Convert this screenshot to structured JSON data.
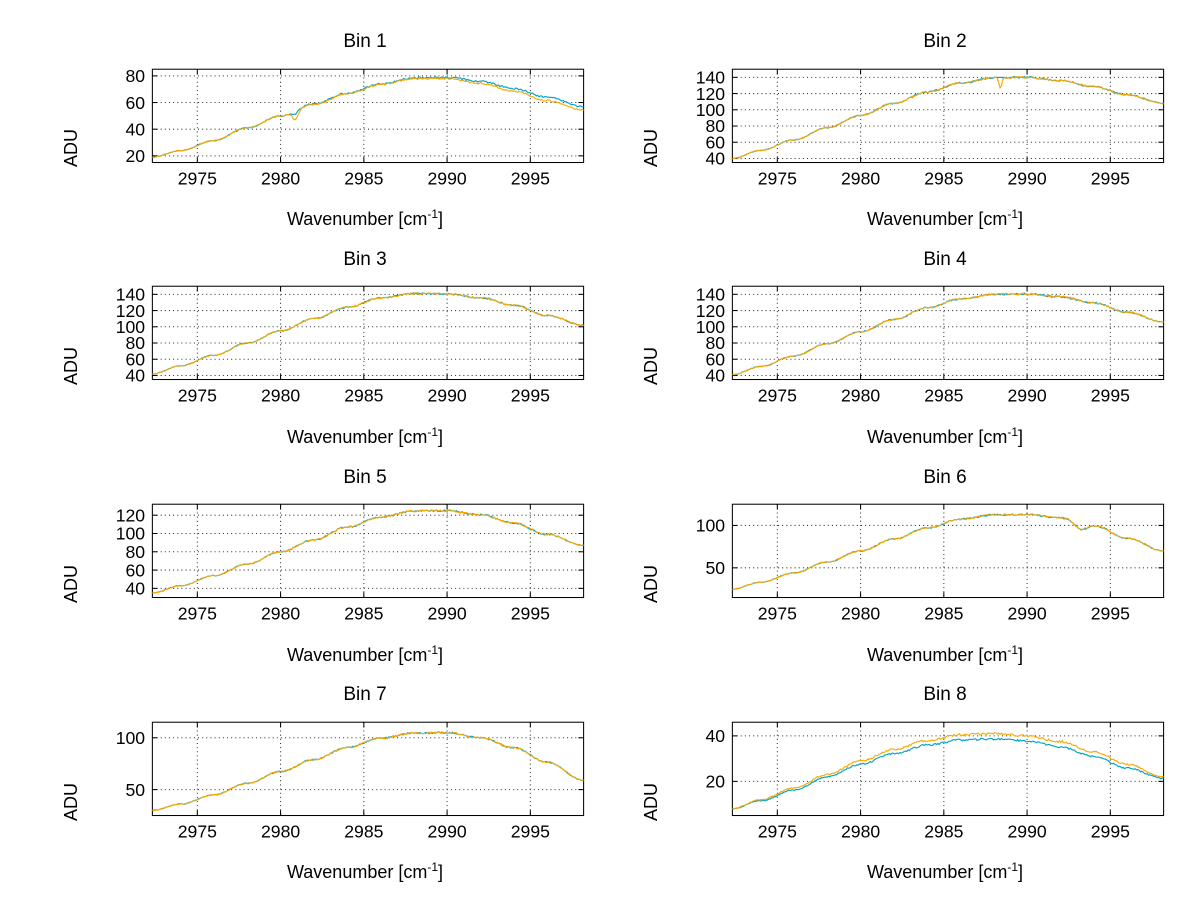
{
  "figure": {
    "background": "#ffffff"
  },
  "colors": {
    "series1": "#00a3c8",
    "series2": "#f9a800",
    "grid": "#333333",
    "axis": "#000000",
    "text": "#000000"
  },
  "labels": {
    "ylabel": "ADU",
    "xlabel_pre": "Wavenumber [cm",
    "xlabel_sup": "-1",
    "xlabel_post": "]"
  },
  "chart_data": [
    {
      "type": "line",
      "title": "Bin 1",
      "xlabel": "Wavenumber [cm^-1]",
      "ylabel": "ADU",
      "xlim": [
        2972.3,
        2998.2
      ],
      "xticks": [
        2975,
        2980,
        2985,
        2990,
        2995
      ],
      "ylim": [
        15,
        85
      ],
      "yticks": [
        20,
        40,
        60,
        80
      ],
      "noise": 0.7,
      "x": [
        2972.3,
        2974,
        2976,
        2978,
        2980,
        2982,
        2984,
        2986,
        2988,
        2990,
        2992,
        2994,
        2996,
        2998.2
      ],
      "series": [
        {
          "name": "trace-blue",
          "color_key": "series1",
          "y": [
            19,
            24,
            31.5,
            41,
            50,
            59,
            67,
            74,
            78.5,
            79,
            76,
            70.5,
            64,
            57
          ],
          "dips": [
            {
              "x": 2980.9,
              "depth": 2.5,
              "width": 0.22
            }
          ]
        },
        {
          "name": "trace-orange",
          "color_key": "series2",
          "y": [
            19,
            24,
            31.5,
            41,
            50,
            58.5,
            66.5,
            73.5,
            78,
            78,
            74.5,
            68.5,
            61.5,
            54.5
          ],
          "dips": [
            {
              "x": 2980.9,
              "depth": 6.5,
              "width": 0.22
            }
          ]
        }
      ]
    },
    {
      "type": "line",
      "title": "Bin 2",
      "xlabel": "Wavenumber [cm^-1]",
      "ylabel": "ADU",
      "xlim": [
        2972.3,
        2998.2
      ],
      "xticks": [
        2975,
        2980,
        2985,
        2990,
        2995
      ],
      "ylim": [
        35,
        150
      ],
      "yticks": [
        40,
        60,
        80,
        100,
        120,
        140
      ],
      "noise": 1.1,
      "x": [
        2972.3,
        2974,
        2976,
        2978,
        2980,
        2982,
        2984,
        2986,
        2988,
        2990,
        2992,
        2994,
        2996,
        2998.2
      ],
      "series": [
        {
          "name": "trace-blue",
          "color_key": "series1",
          "y": [
            40,
            50,
            63,
            78,
            93,
            108,
            122,
            133,
            139.5,
            140,
            136,
            128.5,
            118.5,
            108
          ],
          "dips": []
        },
        {
          "name": "trace-orange",
          "color_key": "series2",
          "y": [
            40,
            50,
            63,
            78,
            93,
            108,
            122,
            133,
            139.5,
            140,
            136,
            128.5,
            118.5,
            108
          ],
          "dips": [
            {
              "x": 2988.4,
              "depth": 13,
              "width": 0.12
            }
          ]
        }
      ]
    },
    {
      "type": "line",
      "title": "Bin 3",
      "xlabel": "Wavenumber [cm^-1]",
      "ylabel": "ADU",
      "xlim": [
        2972.3,
        2998.2
      ],
      "xticks": [
        2975,
        2980,
        2985,
        2990,
        2995
      ],
      "ylim": [
        35,
        150
      ],
      "yticks": [
        40,
        60,
        80,
        100,
        120,
        140
      ],
      "noise": 1.1,
      "x": [
        2972.3,
        2974,
        2976,
        2978,
        2980,
        2982,
        2984,
        2986,
        2988,
        2990,
        2992,
        2994,
        2996,
        2998.2
      ],
      "series": [
        {
          "name": "trace-blue",
          "color_key": "series1",
          "y": [
            42,
            52,
            65,
            80,
            95,
            110,
            124,
            135.5,
            141,
            140.5,
            136,
            126.5,
            114,
            102
          ],
          "dips": []
        },
        {
          "name": "trace-orange",
          "color_key": "series2",
          "y": [
            42,
            52,
            65,
            80,
            95,
            110,
            124,
            135.5,
            141,
            140.5,
            136,
            126.5,
            114,
            102
          ],
          "dips": []
        }
      ]
    },
    {
      "type": "line",
      "title": "Bin 4",
      "xlabel": "Wavenumber [cm^-1]",
      "ylabel": "ADU",
      "xlim": [
        2972.3,
        2998.2
      ],
      "xticks": [
        2975,
        2980,
        2985,
        2990,
        2995
      ],
      "ylim": [
        35,
        150
      ],
      "yticks": [
        40,
        60,
        80,
        100,
        120,
        140
      ],
      "noise": 1.1,
      "x": [
        2972.3,
        2974,
        2976,
        2978,
        2980,
        2982,
        2984,
        2986,
        2988,
        2990,
        2992,
        2994,
        2996,
        2998.2
      ],
      "series": [
        {
          "name": "trace-blue",
          "color_key": "series1",
          "y": [
            41,
            51,
            64,
            79,
            94,
            109,
            123.5,
            134.5,
            140,
            140.5,
            137,
            129.5,
            118,
            106
          ],
          "dips": []
        },
        {
          "name": "trace-orange",
          "color_key": "series2",
          "y": [
            41,
            51,
            64,
            79,
            94,
            109,
            123.5,
            134.5,
            140,
            140.5,
            137,
            129.5,
            118,
            106
          ],
          "dips": []
        }
      ]
    },
    {
      "type": "line",
      "title": "Bin 5",
      "xlabel": "Wavenumber [cm^-1]",
      "ylabel": "ADU",
      "xlim": [
        2972.3,
        2998.2
      ],
      "xticks": [
        2975,
        2980,
        2985,
        2990,
        2995
      ],
      "ylim": [
        30,
        132
      ],
      "yticks": [
        40,
        60,
        80,
        100,
        120
      ],
      "noise": 1.0,
      "x": [
        2972.3,
        2974,
        2976,
        2978,
        2980,
        2982,
        2984,
        2986,
        2988,
        2990,
        2992,
        2994,
        2996,
        2998.2
      ],
      "series": [
        {
          "name": "trace-blue",
          "color_key": "series1",
          "y": [
            35,
            43,
            54,
            66.5,
            80,
            93,
            107,
            118,
            124.5,
            125,
            120.5,
            111.5,
            99,
            87
          ],
          "dips": []
        },
        {
          "name": "trace-orange",
          "color_key": "series2",
          "y": [
            35,
            43,
            54,
            66.5,
            80,
            93,
            107,
            118,
            124.5,
            125,
            120.5,
            111.5,
            99,
            87
          ],
          "dips": []
        }
      ]
    },
    {
      "type": "line",
      "title": "Bin 6",
      "xlabel": "Wavenumber [cm^-1]",
      "ylabel": "ADU",
      "xlim": [
        2972.3,
        2998.2
      ],
      "xticks": [
        2975,
        2980,
        2985,
        2990,
        2995
      ],
      "ylim": [
        15,
        125
      ],
      "yticks": [
        50,
        100
      ],
      "noise": 1.0,
      "x": [
        2972.3,
        2974,
        2976,
        2978,
        2980,
        2982,
        2984,
        2986,
        2988,
        2990,
        2992,
        2994,
        2996,
        2998.2
      ],
      "series": [
        {
          "name": "trace-blue",
          "color_key": "series1",
          "y": [
            25,
            33,
            44,
            57,
            70,
            84,
            97,
            107.5,
            112.5,
            113,
            109,
            100,
            85,
            70
          ],
          "dips": [
            {
              "x": 2993.2,
              "depth": 7,
              "width": 0.5
            }
          ]
        },
        {
          "name": "trace-orange",
          "color_key": "series2",
          "y": [
            25,
            33,
            44,
            57,
            70,
            84,
            97,
            107.5,
            112.5,
            113,
            109,
            100,
            85,
            70
          ],
          "dips": [
            {
              "x": 2993.2,
              "depth": 8,
              "width": 0.5
            }
          ]
        }
      ]
    },
    {
      "type": "line",
      "title": "Bin 7",
      "xlabel": "Wavenumber [cm^-1]",
      "ylabel": "ADU",
      "xlim": [
        2972.3,
        2998.2
      ],
      "xticks": [
        2975,
        2980,
        2985,
        2990,
        2995
      ],
      "ylim": [
        25,
        115
      ],
      "yticks": [
        50,
        100
      ],
      "noise": 0.9,
      "x": [
        2972.3,
        2974,
        2976,
        2978,
        2980,
        2982,
        2984,
        2986,
        2988,
        2990,
        2992,
        2994,
        2996,
        2998.2
      ],
      "series": [
        {
          "name": "trace-blue",
          "color_key": "series1",
          "y": [
            30,
            36,
            45,
            56,
            67.5,
            79,
            90.5,
            99.5,
            104.5,
            105,
            100,
            90.5,
            76.5,
            59
          ],
          "dips": []
        },
        {
          "name": "trace-orange",
          "color_key": "series2",
          "y": [
            30,
            36,
            45,
            56,
            67.5,
            79,
            90.5,
            99.5,
            104.5,
            105,
            100,
            90.5,
            76.5,
            59
          ],
          "dips": []
        }
      ]
    },
    {
      "type": "line",
      "title": "Bin 8",
      "xlabel": "Wavenumber [cm^-1]",
      "ylabel": "ADU",
      "xlim": [
        2972.3,
        2998.2
      ],
      "xticks": [
        2975,
        2980,
        2985,
        2990,
        2995
      ],
      "ylim": [
        5,
        46
      ],
      "yticks": [
        20,
        40
      ],
      "noise": 0.5,
      "x": [
        2972.3,
        2974,
        2976,
        2978,
        2980,
        2982,
        2984,
        2986,
        2988,
        2990,
        2992,
        2994,
        2996,
        2998.2
      ],
      "series": [
        {
          "name": "trace-blue",
          "color_key": "series1",
          "y": [
            8,
            11.5,
            16.2,
            22,
            27.5,
            32.2,
            36,
            38.2,
            38.6,
            37.8,
            35.2,
            31,
            25.8,
            21.3
          ],
          "dips": []
        },
        {
          "name": "trace-orange",
          "color_key": "series2",
          "y": [
            8,
            12,
            17,
            23,
            29,
            34,
            38,
            40.5,
            41,
            40,
            37.5,
            33,
            27.5,
            22
          ],
          "dips": []
        }
      ]
    }
  ]
}
